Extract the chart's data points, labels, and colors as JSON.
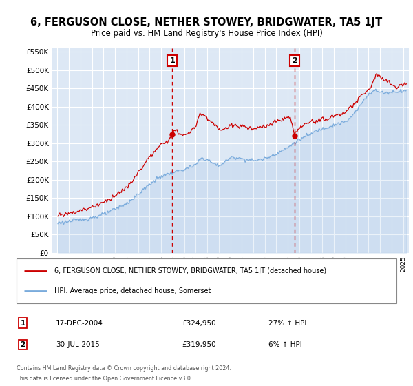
{
  "title": "6, FERGUSON CLOSE, NETHER STOWEY, BRIDGWATER, TA5 1JT",
  "subtitle": "Price paid vs. HM Land Registry's House Price Index (HPI)",
  "legend_line1": "6, FERGUSON CLOSE, NETHER STOWEY, BRIDGWATER, TA5 1JT (detached house)",
  "legend_line2": "HPI: Average price, detached house, Somerset",
  "footnote1": "Contains HM Land Registry data © Crown copyright and database right 2024.",
  "footnote2": "This data is licensed under the Open Government Licence v3.0.",
  "transaction1_date": "17-DEC-2004",
  "transaction1_price": "£324,950",
  "transaction1_hpi": "27% ↑ HPI",
  "transaction2_date": "30-JUL-2015",
  "transaction2_price": "£319,950",
  "transaction2_hpi": "6% ↑ HPI",
  "plot_bg_color": "#dde8f5",
  "red_line_color": "#cc0000",
  "blue_line_color": "#7aabdc",
  "vline_color": "#cc0000",
  "grid_color": "#ffffff",
  "ylim": [
    0,
    560000
  ],
  "yticks": [
    0,
    50000,
    100000,
    150000,
    200000,
    250000,
    300000,
    350000,
    400000,
    450000,
    500000,
    550000
  ],
  "ytick_labels": [
    "£0",
    "£50K",
    "£100K",
    "£150K",
    "£200K",
    "£250K",
    "£300K",
    "£350K",
    "£400K",
    "£450K",
    "£500K",
    "£550K"
  ],
  "transaction1_x": 2004.96,
  "transaction1_y": 324950,
  "transaction2_x": 2015.58,
  "transaction2_y": 319950,
  "xlim_start": 1994.5,
  "xlim_end": 2025.5
}
